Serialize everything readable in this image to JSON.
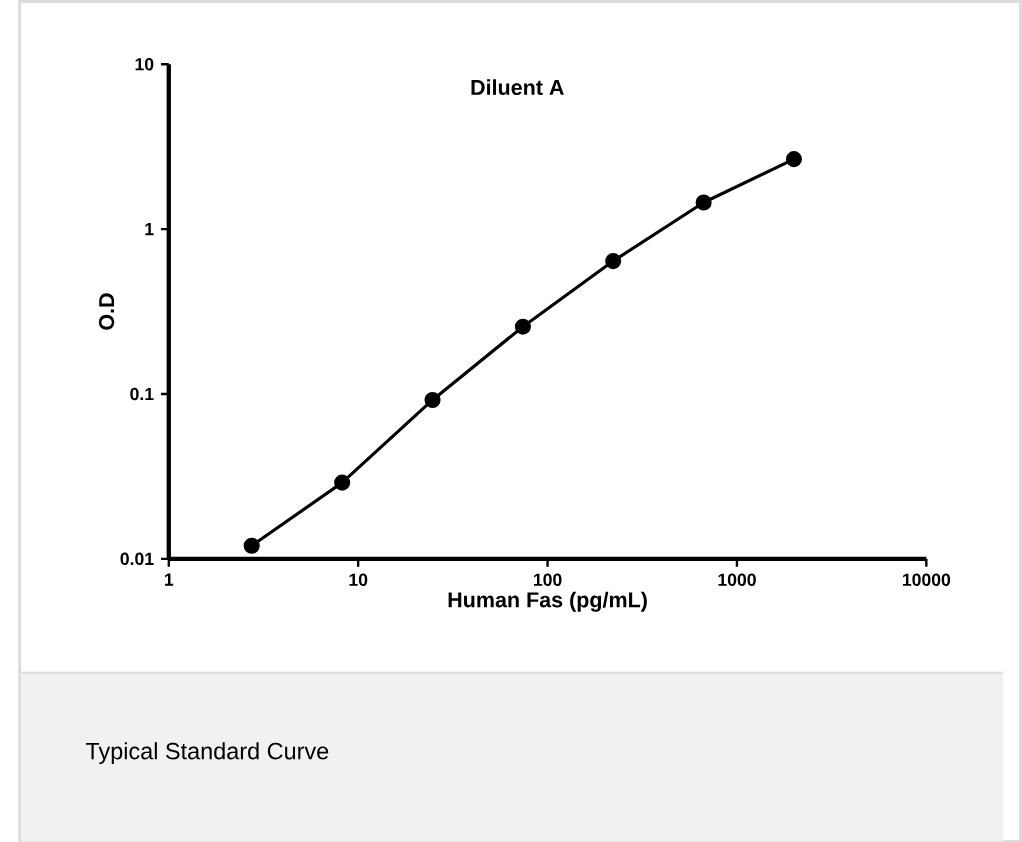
{
  "chart_data": {
    "type": "line",
    "title": "Diluent A",
    "xlabel": "Human Fas (pg/mL)",
    "ylabel": "O.D",
    "log": "xy",
    "x": [
      2.74,
      8.23,
      24.7,
      74.1,
      222,
      667,
      2000
    ],
    "series": [
      {
        "color": "#000000",
        "values": [
          0.012,
          0.029,
          0.092,
          0.256,
          0.64,
          1.45,
          2.66
        ]
      }
    ],
    "xlim": [
      1,
      10000
    ],
    "ylim": [
      0.01,
      10
    ],
    "xticks": [
      1,
      10,
      100,
      1000,
      10000
    ],
    "yticks": [
      0.01,
      0.1,
      1,
      10
    ],
    "marker": "circle",
    "line_style": "solid",
    "grid": false,
    "annotations": [
      "Typical Standard Curve"
    ]
  }
}
